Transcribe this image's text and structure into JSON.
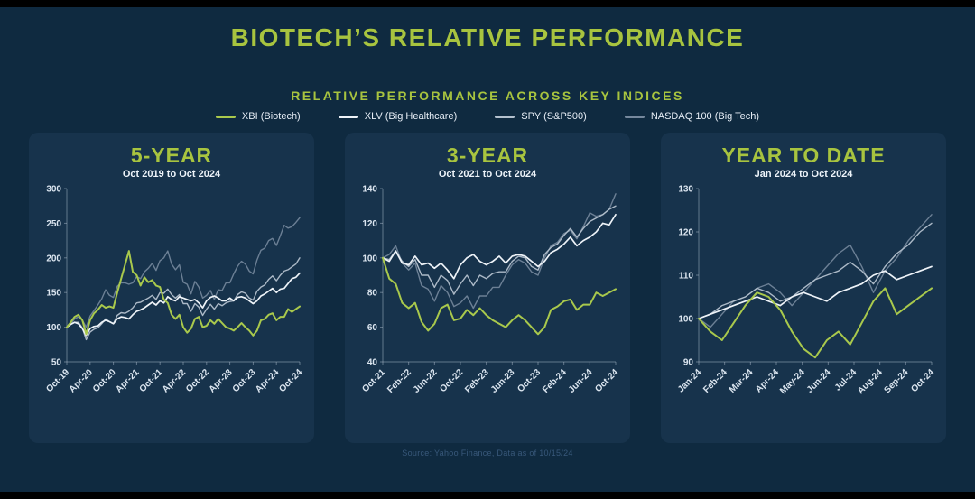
{
  "page": {
    "title": "BIOTECH’S RELATIVE PERFORMANCE",
    "subtitle": "RELATIVE PERFORMANCE ACROSS KEY INDICES",
    "source": "Source: Yahoo Finance, Data as of 10/15/24"
  },
  "colors": {
    "background": "#0f2a40",
    "panel": "#17334c",
    "accent_green": "#a8c43f",
    "xbi": "#a9c94c",
    "xlv": "#eef3f8",
    "spy": "#b4c1ce",
    "nasdaq": "#76889d",
    "axis": "rgba(190,205,220,0.45)"
  },
  "legend": [
    {
      "label": "XBI (Biotech)",
      "color_key": "xbi"
    },
    {
      "label": "XLV (Big Healthcare)",
      "color_key": "xlv"
    },
    {
      "label": "SPY (S&P500)",
      "color_key": "spy"
    },
    {
      "label": "NASDAQ 100 (Big Tech)",
      "color_key": "nasdaq"
    }
  ],
  "chart_data": [
    {
      "type": "line",
      "title": "5-YEAR",
      "subtitle": "Oct 2019 to Oct 2024",
      "ylim": [
        50,
        300
      ],
      "yticks": [
        300,
        250,
        200,
        150,
        100,
        50
      ],
      "xticklabels": [
        "Oct-19",
        "Apr-20",
        "Oct-20",
        "Apr-21",
        "Oct-21",
        "Apr-22",
        "Oct-22",
        "Apr-23",
        "Oct-23",
        "Apr-24",
        "Oct-24"
      ],
      "series": [
        {
          "name": "XBI (Biotech)",
          "color_key": "xbi",
          "values": [
            100,
            107,
            115,
            118,
            110,
            90,
            110,
            120,
            125,
            132,
            128,
            130,
            128,
            150,
            170,
            190,
            210,
            180,
            175,
            160,
            172,
            165,
            168,
            160,
            158,
            140,
            135,
            118,
            112,
            118,
            100,
            92,
            98,
            112,
            115,
            100,
            102,
            110,
            105,
            112,
            106,
            100,
            98,
            95,
            100,
            106,
            100,
            95,
            88,
            95,
            110,
            112,
            118,
            120,
            110,
            115,
            115,
            126,
            122,
            126,
            130
          ]
        },
        {
          "name": "XLV (Big Healthcare)",
          "color_key": "xlv",
          "values": [
            100,
            104,
            107,
            105,
            98,
            88,
            98,
            101,
            102,
            107,
            110,
            108,
            105,
            112,
            115,
            114,
            112,
            118,
            123,
            125,
            128,
            132,
            136,
            132,
            138,
            135,
            144,
            140,
            138,
            144,
            142,
            140,
            138,
            140,
            135,
            128,
            138,
            143,
            145,
            142,
            138,
            138,
            142,
            138,
            143,
            144,
            142,
            138,
            134,
            138,
            145,
            148,
            152,
            156,
            150,
            155,
            156,
            163,
            170,
            172,
            178
          ]
        },
        {
          "name": "SPY (S&P500)",
          "color_key": "spy",
          "values": [
            100,
            104,
            107,
            107,
            99,
            82,
            93,
            97,
            99,
            105,
            112,
            108,
            105,
            117,
            121,
            120,
            123,
            128,
            135,
            136,
            139,
            142,
            146,
            140,
            150,
            149,
            155,
            147,
            142,
            147,
            134,
            134,
            123,
            134,
            129,
            117,
            126,
            133,
            126,
            134,
            131,
            135,
            137,
            138,
            147,
            151,
            149,
            142,
            139,
            152,
            158,
            161,
            169,
            174,
            167,
            175,
            181,
            183,
            187,
            191,
            200
          ]
        },
        {
          "name": "NASDAQ 100 (Big Tech)",
          "color_key": "nasdaq",
          "values": [
            100,
            104,
            112,
            115,
            110,
            100,
            116,
            124,
            132,
            141,
            154,
            146,
            143,
            159,
            164,
            164,
            162,
            164,
            173,
            170,
            180,
            185,
            192,
            182,
            196,
            200,
            210,
            191,
            183,
            190,
            165,
            162,
            148,
            166,
            158,
            142,
            146,
            153,
            140,
            154,
            153,
            164,
            164,
            177,
            188,
            195,
            191,
            181,
            177,
            197,
            211,
            214,
            225,
            228,
            218,
            232,
            247,
            243,
            245,
            251,
            258
          ]
        }
      ]
    },
    {
      "type": "line",
      "title": "3-YEAR",
      "subtitle": "Oct 2021 to Oct 2024",
      "ylim": [
        40,
        140
      ],
      "yticks": [
        140,
        120,
        100,
        80,
        60,
        40
      ],
      "xticklabels": [
        "Oct-21",
        "Feb-22",
        "Jun-22",
        "Oct-22",
        "Feb-23",
        "Jun-23",
        "Oct-23",
        "Feb-24",
        "Jun-24",
        "Oct-24"
      ],
      "series": [
        {
          "name": "XBI (Biotech)",
          "color_key": "xbi",
          "values": [
            100,
            88,
            85,
            74,
            71,
            74,
            63,
            58,
            62,
            71,
            73,
            64,
            65,
            70,
            67,
            71,
            67,
            64,
            62,
            60,
            64,
            67,
            64,
            60,
            56,
            60,
            70,
            72,
            75,
            76,
            70,
            73,
            73,
            80,
            78,
            80,
            82
          ]
        },
        {
          "name": "XLV (Big Healthcare)",
          "color_key": "xlv",
          "values": [
            100,
            98,
            104,
            97,
            96,
            101,
            96,
            97,
            94,
            97,
            93,
            88,
            96,
            100,
            102,
            98,
            96,
            98,
            101,
            97,
            101,
            102,
            101,
            98,
            95,
            98,
            103,
            105,
            108,
            112,
            107,
            110,
            112,
            115,
            120,
            119,
            125
          ]
        },
        {
          "name": "SPY (S&P500)",
          "color_key": "spy",
          "values": [
            100,
            99,
            104,
            98,
            95,
            99,
            90,
            90,
            83,
            90,
            87,
            79,
            85,
            90,
            84,
            90,
            88,
            91,
            92,
            92,
            98,
            101,
            100,
            95,
            93,
            102,
            106,
            108,
            113,
            117,
            112,
            117,
            121,
            123,
            125,
            128,
            130
          ]
        },
        {
          "name": "NASDAQ 100 (Big Tech)",
          "color_key": "nasdaq",
          "values": [
            100,
            102,
            107,
            97,
            93,
            97,
            84,
            82,
            75,
            84,
            80,
            72,
            74,
            78,
            71,
            78,
            78,
            83,
            83,
            90,
            96,
            99,
            97,
            92,
            90,
            100,
            107,
            109,
            114,
            116,
            111,
            118,
            126,
            124,
            125,
            128,
            137
          ]
        }
      ]
    },
    {
      "type": "line",
      "title": "YEAR TO DATE",
      "subtitle": "Jan 2024 to Oct 2024",
      "ylim": [
        90,
        130
      ],
      "yticks": [
        130,
        120,
        110,
        100,
        90
      ],
      "xticklabels": [
        "Jan-24",
        "Feb-24",
        "Mar-24",
        "Apr-24",
        "May-24",
        "Jun-24",
        "Jul-24",
        "Aug-24",
        "Sep-24",
        "Oct-24"
      ],
      "series": [
        {
          "name": "XBI (Biotech)",
          "color_key": "xbi",
          "values": [
            100,
            97,
            95,
            99,
            103,
            106,
            105,
            102,
            97,
            93,
            91,
            95,
            97,
            94,
            99,
            104,
            107,
            101,
            103,
            105,
            107
          ]
        },
        {
          "name": "XLV (Big Healthcare)",
          "color_key": "xlv",
          "values": [
            100,
            101,
            102,
            103,
            104,
            105,
            104,
            103,
            105,
            106,
            105,
            104,
            106,
            107,
            108,
            110,
            111,
            109,
            110,
            111,
            112
          ]
        },
        {
          "name": "SPY (S&P500)",
          "color_key": "spy",
          "values": [
            100,
            101,
            103,
            104,
            105,
            107,
            106,
            104,
            105,
            107,
            109,
            110,
            111,
            113,
            111,
            108,
            112,
            115,
            117,
            120,
            122
          ]
        },
        {
          "name": "NASDAQ 100 (Big Tech)",
          "color_key": "nasdaq",
          "values": [
            100,
            98,
            101,
            104,
            105,
            107,
            108,
            106,
            103,
            106,
            109,
            112,
            115,
            117,
            112,
            106,
            111,
            114,
            118,
            121,
            124
          ]
        }
      ]
    }
  ]
}
